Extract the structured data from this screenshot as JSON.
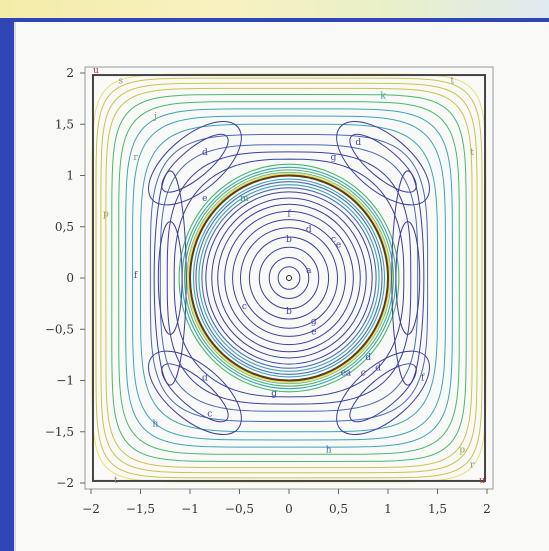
{
  "chart_data": {
    "type": "contour",
    "title": "",
    "xlabel": "",
    "ylabel": "",
    "xlim": [
      -2,
      2
    ],
    "ylim": [
      -2,
      2
    ],
    "xticks": [
      "−2",
      "−1,5",
      "−1",
      "−0,5",
      "0",
      "0,5",
      "1",
      "1,5",
      "2"
    ],
    "xtick_values": [
      -2,
      -1.5,
      -1,
      -0.5,
      0,
      0.5,
      1,
      1.5,
      2
    ],
    "yticks": [
      "2",
      "1,5",
      "1",
      "0,5",
      "0",
      "−0,5",
      "−1",
      "−1,5",
      "−2"
    ],
    "ytick_values": [
      2,
      1.5,
      1,
      0.5,
      0,
      -0.5,
      -1,
      -1.5,
      -2
    ],
    "grid": false,
    "highlight_circle": {
      "cx": 0,
      "cy": 0,
      "r": 1,
      "color": "#5a3a1a"
    },
    "inner_rings": [
      0.11,
      0.2,
      0.3,
      0.4,
      0.49,
      0.57,
      0.65,
      0.72,
      0.78,
      0.84
    ],
    "band_rings": [
      0.88,
      0.91,
      0.94,
      0.965,
      1.03,
      1.055,
      1.08,
      1.11
    ],
    "outer_levels": [
      1.16,
      1.23,
      1.3,
      1.4,
      1.5,
      1.58,
      1.65,
      1.72,
      1.79,
      1.85,
      1.9,
      1.95,
      1.99
    ],
    "center_point": {
      "x": 0,
      "y": 0
    },
    "contour_labels": [
      {
        "text": "a",
        "x": 0.2,
        "y": 0.05,
        "color": "#3a47a8"
      },
      {
        "text": "b",
        "x": 0.0,
        "y": 0.35,
        "color": "#3a47a8"
      },
      {
        "text": "c",
        "x": 0.45,
        "y": 0.35,
        "color": "#3a47a8"
      },
      {
        "text": "e",
        "x": 0.5,
        "y": 0.3,
        "color": "#3a47a8"
      },
      {
        "text": "d",
        "x": 0.2,
        "y": 0.45,
        "color": "#3a47a8"
      },
      {
        "text": "f",
        "x": 0.0,
        "y": 0.6,
        "color": "#3a47a8"
      },
      {
        "text": "m",
        "x": -0.45,
        "y": 0.75,
        "color": "#3aa070"
      },
      {
        "text": "b",
        "x": 0.0,
        "y": -0.35,
        "color": "#3a47a8"
      },
      {
        "text": "c",
        "x": -0.45,
        "y": -0.3,
        "color": "#3a47a8"
      },
      {
        "text": "e",
        "x": 0.25,
        "y": -0.55,
        "color": "#3a47a8"
      },
      {
        "text": "g",
        "x": 0.25,
        "y": -0.45,
        "color": "#3a47a8"
      },
      {
        "text": "c",
        "x": 0.75,
        "y": -0.95,
        "color": "#3a47a8"
      },
      {
        "text": "d",
        "x": 0.9,
        "y": -0.9,
        "color": "#3a47a8"
      },
      {
        "text": "e",
        "x": 0.55,
        "y": -0.95,
        "color": "#3a47a8"
      },
      {
        "text": "a",
        "x": 0.6,
        "y": -0.95,
        "color": "#3a47a8"
      },
      {
        "text": "d",
        "x": -0.85,
        "y": 1.2,
        "color": "#3a47a8"
      },
      {
        "text": "d",
        "x": 0.7,
        "y": 1.3,
        "color": "#3a47a8"
      },
      {
        "text": "d",
        "x": 0.8,
        "y": -0.8,
        "color": "#3a47a8"
      },
      {
        "text": "d",
        "x": -0.85,
        "y": -1.0,
        "color": "#3a47a8"
      },
      {
        "text": "c",
        "x": -0.8,
        "y": -1.35,
        "color": "#3a47a8"
      },
      {
        "text": "e",
        "x": -0.85,
        "y": 0.75,
        "color": "#3a47a8"
      },
      {
        "text": "f",
        "x": -1.55,
        "y": 0.0,
        "color": "#3a47a8"
      },
      {
        "text": "f",
        "x": 1.35,
        "y": -1.0,
        "color": "#3a47a8"
      },
      {
        "text": "g",
        "x": -0.15,
        "y": -1.15,
        "color": "#3a47a8"
      },
      {
        "text": "g",
        "x": 0.45,
        "y": 1.15,
        "color": "#3a47a8"
      },
      {
        "text": "h",
        "x": 0.4,
        "y": -1.7,
        "color": "#3a6ab0"
      },
      {
        "text": "h",
        "x": -1.35,
        "y": -1.45,
        "color": "#3a6ab0"
      },
      {
        "text": "k",
        "x": 0.95,
        "y": 1.75,
        "color": "#3a9aa0"
      },
      {
        "text": "j",
        "x": -1.35,
        "y": 1.55,
        "color": "#8a9a3a"
      },
      {
        "text": "s",
        "x": -1.7,
        "y": 1.9,
        "color": "#8a8a8a"
      },
      {
        "text": "t",
        "x": 1.65,
        "y": 1.9,
        "color": "#8a8a8a"
      },
      {
        "text": "u",
        "x": -1.95,
        "y": 2.0,
        "color": "#b03030"
      },
      {
        "text": "u",
        "x": 1.95,
        "y": -2.0,
        "color": "#b03030"
      },
      {
        "text": "t",
        "x": 1.85,
        "y": 1.2,
        "color": "#8a8a8a"
      },
      {
        "text": "t",
        "x": -1.75,
        "y": -2.0,
        "color": "#8a8a8a"
      },
      {
        "text": "r",
        "x": -1.55,
        "y": 1.15,
        "color": "#8a8a8a"
      },
      {
        "text": "r",
        "x": 1.85,
        "y": -1.85,
        "color": "#8a8a8a"
      },
      {
        "text": "p",
        "x": 1.75,
        "y": -1.7,
        "color": "#9aa03a"
      },
      {
        "text": "p",
        "x": -1.85,
        "y": 0.6,
        "color": "#9aa03a"
      }
    ],
    "colors": {
      "inner": "#3b3f9e",
      "mid": "#4a6ab8",
      "teal": "#3aa5b8",
      "green": "#48b86a",
      "yellow": "#c8c44a",
      "bright_yellow": "#e8e070",
      "frame": "#444"
    }
  }
}
